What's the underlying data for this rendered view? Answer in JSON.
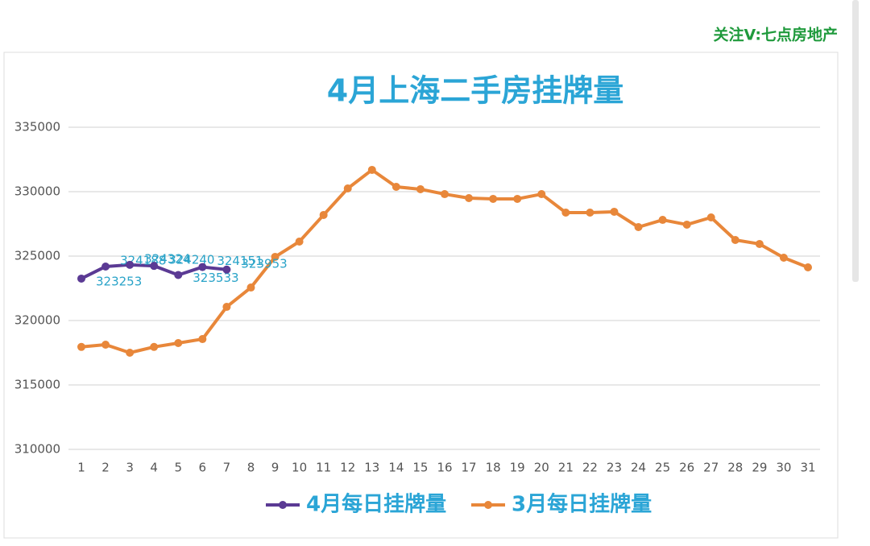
{
  "watermark": "关注V:七点房地产",
  "chart_data": {
    "type": "line",
    "title": "4月上海二手房挂牌量",
    "x": [
      1,
      2,
      3,
      4,
      5,
      6,
      7,
      8,
      9,
      10,
      11,
      12,
      13,
      14,
      15,
      16,
      17,
      18,
      19,
      20,
      21,
      22,
      23,
      24,
      25,
      26,
      27,
      28,
      29,
      30,
      31
    ],
    "xlim": [
      1,
      31
    ],
    "ylim": [
      310000,
      335000
    ],
    "yticks": [
      310000,
      315000,
      320000,
      325000,
      330000,
      335000
    ],
    "grid": true,
    "legend": "bottom",
    "series": [
      {
        "name": "4月每日挂牌量",
        "color": "#5b3a94",
        "data_labels": true,
        "values": [
          323253,
          324188,
          324324,
          324240,
          323533,
          324151,
          323953,
          null,
          null,
          null,
          null,
          null,
          null,
          null,
          null,
          null,
          null,
          null,
          null,
          null,
          null,
          null,
          null,
          null,
          null,
          null,
          null,
          null,
          null,
          null,
          null
        ]
      },
      {
        "name": "3月每日挂牌量",
        "color": "#e8873a",
        "data_labels": false,
        "values": [
          317950,
          318125,
          317500,
          317950,
          318250,
          318560,
          321060,
          322560,
          324940,
          326125,
          328190,
          330250,
          331690,
          330375,
          330190,
          329810,
          329500,
          329440,
          329440,
          329810,
          328375,
          328375,
          328440,
          327250,
          327810,
          327440,
          328000,
          326250,
          325940,
          324875,
          324125
        ]
      }
    ]
  }
}
